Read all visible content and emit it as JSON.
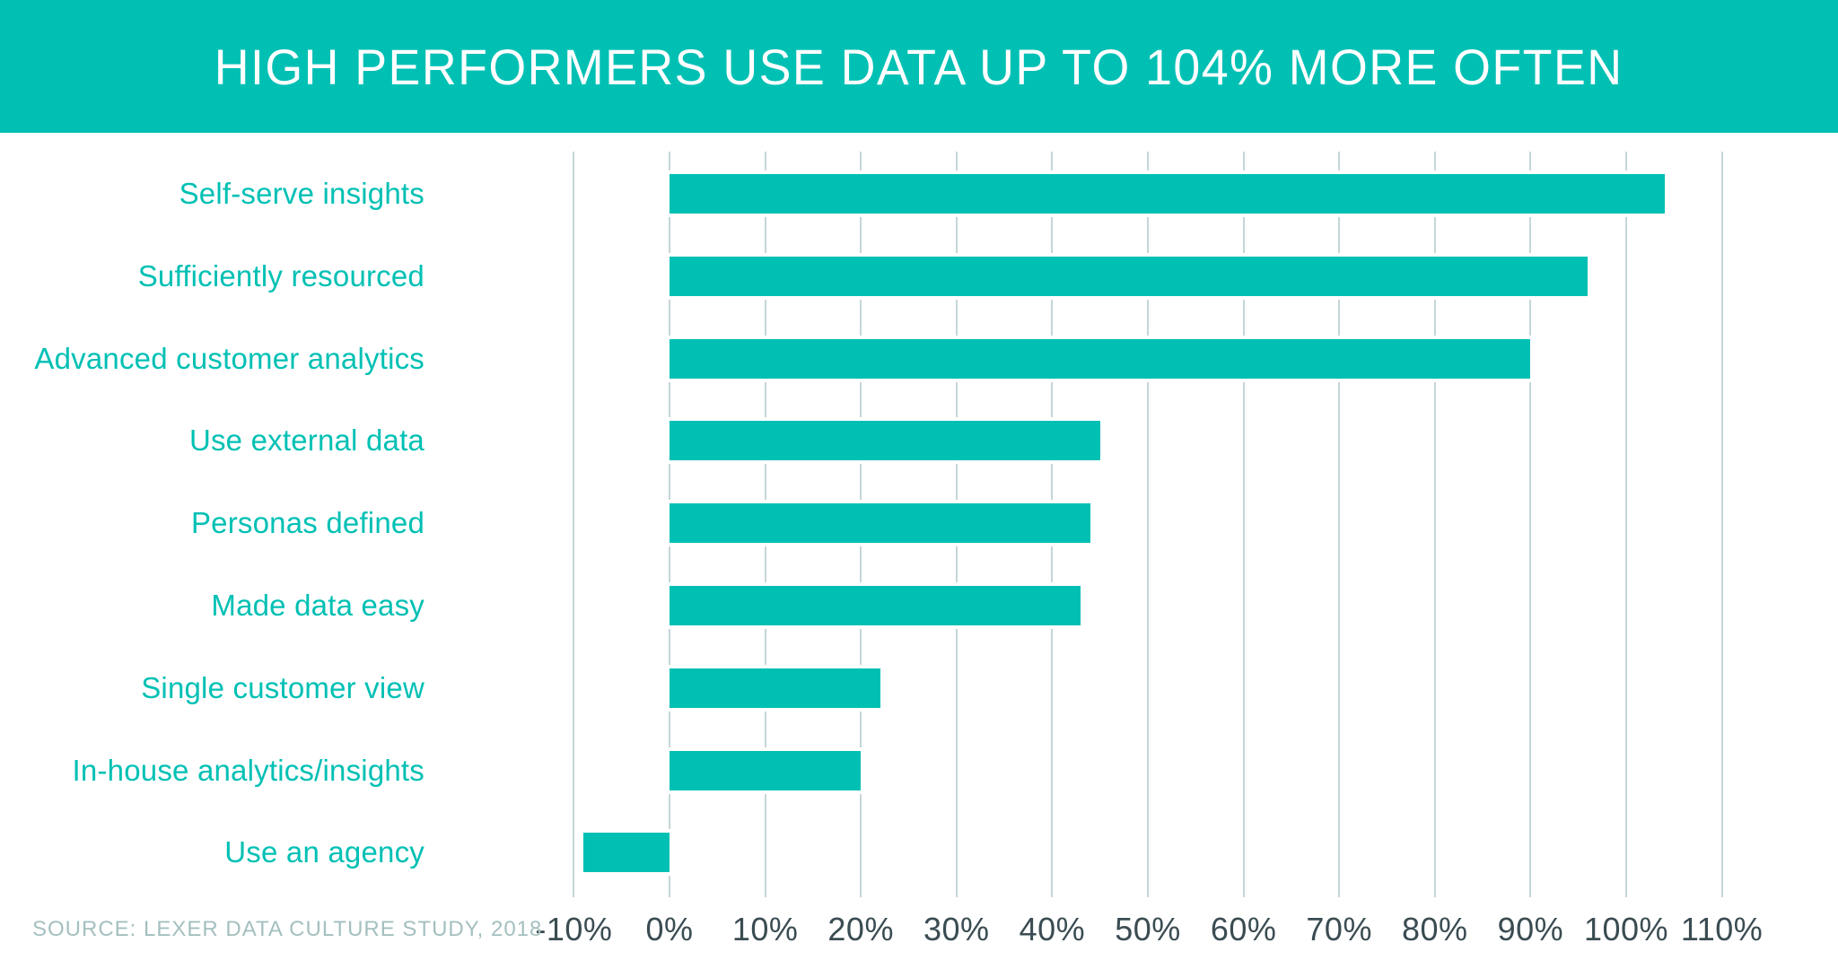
{
  "header": {
    "title": "HIGH PERFORMERS USE DATA UP TO 104% MORE OFTEN",
    "background_color": "#00C0B4",
    "title_color": "#FFFFFF"
  },
  "source": {
    "label": "SOURCE: LEXER DATA CULTURE STUDY, 2018",
    "color": "#A4BFBF"
  },
  "chart_data": {
    "type": "bar",
    "orientation": "horizontal",
    "title": "HIGH PERFORMERS USE DATA UP TO 104% MORE OFTEN",
    "categories": [
      "Self-serve insights",
      "Sufficiently resourced",
      "Advanced customer analytics",
      "Use external data",
      "Personas defined",
      "Made data easy",
      "Single customer view",
      "In-house analytics/insights",
      "Use an agency"
    ],
    "values": [
      104,
      96,
      90,
      45,
      44,
      43,
      22,
      20,
      -9
    ],
    "unit": "%",
    "xlabel": "",
    "ylabel": "",
    "xlim": [
      -10,
      110
    ],
    "x_tick_step": 10,
    "x_tick_labels": [
      "-10%",
      "0%",
      "10%",
      "20%",
      "30%",
      "40%",
      "50%",
      "60%",
      "70%",
      "80%",
      "90%",
      "100%",
      "110%"
    ],
    "grid": "vertical",
    "legend": "none",
    "bar_color": "#00C0B4",
    "bar_outline_color": "#FFFFFF",
    "gridline_color": "#C5D6D8",
    "category_label_color": "#00C0B4",
    "tick_label_color": "#3A4C52"
  }
}
